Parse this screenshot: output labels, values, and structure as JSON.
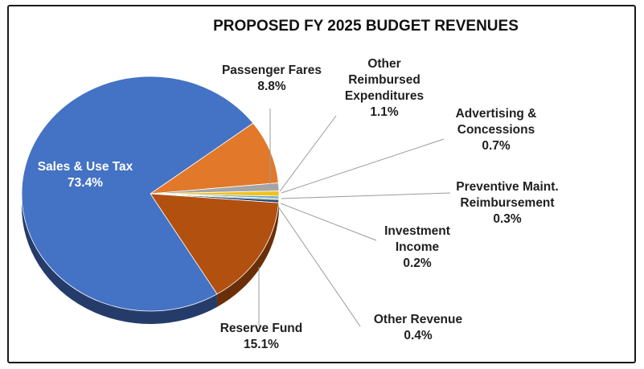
{
  "chart_data": {
    "type": "pie",
    "title": "PROPOSED FY 2025 BUDGET REVENUES",
    "slices": [
      {
        "name": "Sales & Use Tax",
        "value": 73.4,
        "label_value": "73.4%",
        "color": "#4472c4",
        "side": "#253c6b",
        "label_lines": [
          "Sales & Use Tax"
        ]
      },
      {
        "name": "Passenger Fares",
        "value": 8.8,
        "label_value": "8.8%",
        "color": "#e2782a",
        "side": "#8a4515",
        "label_lines": [
          "Passenger Fares"
        ]
      },
      {
        "name": "Other Reimbursed Expenditures",
        "value": 1.1,
        "label_value": "1.1%",
        "color": "#a5a5a5",
        "side": "#6b6b6b",
        "label_lines": [
          "Other",
          "Reimbursed",
          "Expenditures"
        ]
      },
      {
        "name": "Advertising & Concessions",
        "value": 0.7,
        "label_value": "0.7%",
        "color": "#f2c21a",
        "side": "#9b7a0c",
        "label_lines": [
          "Advertising &",
          "Concessions"
        ]
      },
      {
        "name": "Preventive Maint. Reimbursement",
        "value": 0.3,
        "label_value": "0.3%",
        "color": "#5b9bd5",
        "side": "#355f86",
        "label_lines": [
          "Preventive Maint.",
          "Reimbursement"
        ]
      },
      {
        "name": "Investment Income",
        "value": 0.2,
        "label_value": "0.2%",
        "color": "#70ad47",
        "side": "#43692a",
        "label_lines": [
          "Investment",
          "Income"
        ]
      },
      {
        "name": "Other Revenue",
        "value": 0.4,
        "label_value": "0.4%",
        "color": "#264478",
        "side": "#14264a",
        "label_lines": [
          "Other Revenue"
        ]
      },
      {
        "name": "Reserve Fund",
        "value": 15.1,
        "label_value": "15.1%",
        "color": "#b2500f",
        "side": "#6a2f08",
        "label_lines": [
          "Reserve Fund"
        ]
      }
    ],
    "legend": "none",
    "style": "3d-pie with leader lines"
  }
}
